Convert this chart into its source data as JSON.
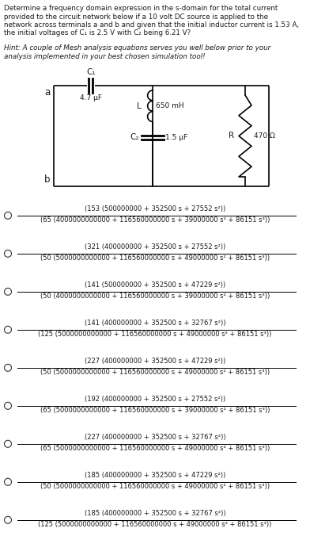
{
  "title_lines": [
    "Determine a frequency domain expression in the s-domain for the total current",
    "provided to the circuit network below if a 10 volt DC source is applied to the",
    "network across terminals a and b and given that the initial inductor current is 1.53 A,",
    "the initial voltages of C₁ is 2.5 V with C₂ being 6.21 V?"
  ],
  "hint_lines": [
    "Hint: A couple of Mesh analysis equations serves you well below prior to your",
    "analysis implemented in your best chosen simulation tool!"
  ],
  "options": [
    {
      "numerator": "(153 (500000000 + 352500 s + 27552 s²))",
      "denominator": "(65 (4000000000000 + 116560000000 s + 39000000 s² + 86151 s³))"
    },
    {
      "numerator": "(321 (400000000 + 352500 s + 27552 s²))",
      "denominator": "(50 (5000000000000 + 116560000000 s + 49000000 s² + 86151 s³))"
    },
    {
      "numerator": "(141 (500000000 + 352500 s + 47229 s²))",
      "denominator": "(50 (4000000000000 + 116560000000 s + 39000000 s² + 86151 s³))"
    },
    {
      "numerator": "(141 (400000000 + 352500 s + 32767 s²))",
      "denominator": "(125 (5000000000000 + 116560000000 s + 49000000 s² + 86151 s³))"
    },
    {
      "numerator": "(227 (400000000 + 352500 s + 47229 s²))",
      "denominator": "(50 (5000000000000 + 116560000000 s + 49000000 s² + 86151 s³))"
    },
    {
      "numerator": "(192 (400000000 + 352500 s + 27552 s²))",
      "denominator": "(65 (5000000000000 + 116560000000 s + 39000000 s² + 86151 s³))"
    },
    {
      "numerator": "(227 (400000000 + 352500 s + 32767 s²))",
      "denominator": "(65 (5000000000000 + 116560000000 s + 49000000 s² + 86151 s³))"
    },
    {
      "numerator": "(185 (400000000 + 352500 s + 47229 s²))",
      "denominator": "(50 (5000000000000 + 116560000000 s + 49000000 s² + 86151 s³))"
    },
    {
      "numerator": "(185 (400000000 + 352500 s + 32767 s²))",
      "denominator": "(125 (5000000000000 + 116560000000 s + 49000000 s² + 86151 s³))"
    }
  ],
  "bg_color": "#ffffff",
  "text_color": "#1a1a1a",
  "circuit": {
    "C1_label": "C₁",
    "C1_val": "4.7 μF",
    "L_label": "L",
    "L_val": "650 mH",
    "C2_label": "C₂",
    "C2_val": "1.5 μF",
    "R_label": "R",
    "R_val": "470 Ω",
    "a_label": "a",
    "b_label": "b"
  }
}
